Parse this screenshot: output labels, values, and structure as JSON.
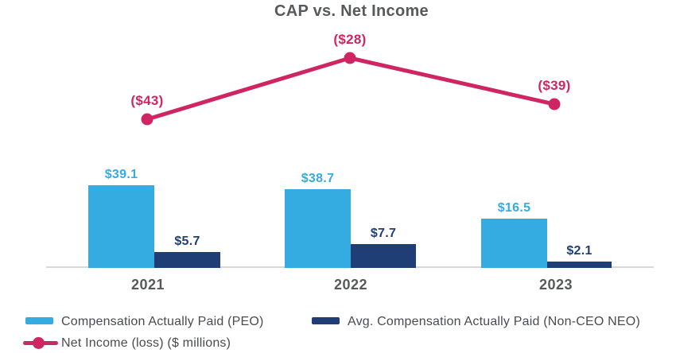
{
  "title": "CAP vs. Net Income",
  "colors": {
    "peo_bar": "#35ACE1",
    "neo_bar": "#1F3E75",
    "net_income_line": "#D02563",
    "title_text": "#58595B",
    "axis_text": "#58595B",
    "legend_text": "#4A4B51",
    "axis_line": "#D8D8D8"
  },
  "chart_data": {
    "type": "bar",
    "subtype": "grouped-bars-with-line-overlay",
    "title": "CAP vs. Net Income",
    "categories": [
      "2021",
      "2022",
      "2023"
    ],
    "series": [
      {
        "name": "Compensation Actually Paid (PEO)",
        "type": "bar",
        "values": [
          39.1,
          38.7,
          16.5
        ],
        "labels": [
          "$39.1",
          "$38.7",
          "$16.5"
        ],
        "color": "#35ACE1"
      },
      {
        "name": "Avg. Compensation Actually Paid (Non-CEO NEO)",
        "type": "bar",
        "values": [
          5.7,
          7.7,
          2.1
        ],
        "labels": [
          "$5.7",
          "$7.7",
          "$2.1"
        ],
        "color": "#1F3E75"
      },
      {
        "name": "Net Income (loss) ($ millions)",
        "type": "line",
        "values": [
          -43,
          -28,
          -39
        ],
        "labels": [
          "($43)",
          "($28)",
          "($39)"
        ],
        "color": "#D02563"
      }
    ],
    "xlabel": "",
    "ylabel": "",
    "grid": false,
    "y_axis_shown": false,
    "legend_position": "bottom-left",
    "layout_hints": {
      "baseline_y": 337,
      "axis_x1": 58,
      "axis_x2": 822,
      "category_centers_x": [
        186,
        441,
        699
      ],
      "peo_bars": [
        {
          "x": 111,
          "w": 83,
          "top": 233
        },
        {
          "x": 358,
          "w": 83,
          "top": 238
        },
        {
          "x": 605,
          "w": 83,
          "top": 275
        }
      ],
      "neo_bars": [
        {
          "x": 194,
          "w": 83,
          "top": 317
        },
        {
          "x": 441,
          "w": 82,
          "top": 307
        },
        {
          "x": 688,
          "w": 81,
          "top": 329
        }
      ],
      "line_points": [
        {
          "x": 185,
          "y": 150
        },
        {
          "x": 440,
          "y": 73
        },
        {
          "x": 697,
          "y": 131
        }
      ],
      "line_stroke_width": 5,
      "line_dot_radius": 7.5
    }
  },
  "legend": {
    "items": [
      {
        "label": "Compensation Actually Paid (PEO)",
        "swatch": "bar",
        "color": "#35ACE1"
      },
      {
        "label": "Avg. Compensation Actually Paid (Non-CEO NEO)",
        "swatch": "bar",
        "color": "#1F3E75"
      },
      {
        "label": "Net Income (loss) ($ millions)",
        "swatch": "line-dot",
        "color": "#D02563"
      }
    ]
  }
}
